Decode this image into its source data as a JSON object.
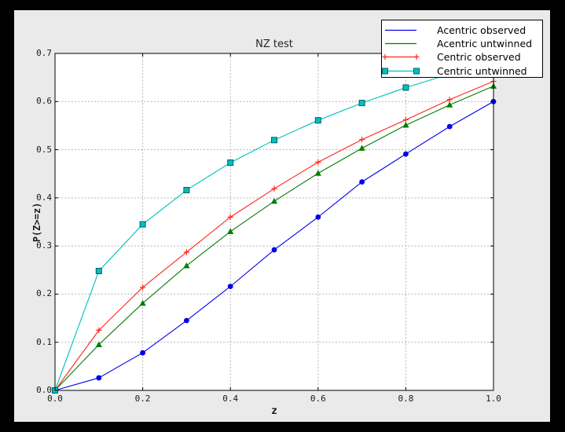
{
  "window": {
    "frame_color": "#000000",
    "figure_bg": "#EAEAEA",
    "plot_bg": "#FFFFFF",
    "grid_color": "#B3B3B3",
    "spine_color": "#000000",
    "text_color": "#1a1a1a"
  },
  "chart_data": {
    "type": "line",
    "title": "NZ test",
    "xlabel": "z",
    "ylabel": "P(Z>=z)",
    "xlim": [
      0.0,
      1.0
    ],
    "ylim": [
      0.0,
      0.7
    ],
    "xticks": [
      0.0,
      0.2,
      0.4,
      0.6,
      0.8,
      1.0
    ],
    "xtick_labels": [
      "0.0",
      "0.2",
      "0.4",
      "0.6",
      "0.8",
      "1.0"
    ],
    "yticks": [
      0.0,
      0.1,
      0.2,
      0.3,
      0.4,
      0.5,
      0.6,
      0.7
    ],
    "ytick_labels": [
      "0.0",
      "0.1",
      "0.2",
      "0.3",
      "0.4",
      "0.5",
      "0.6",
      "0.7"
    ],
    "grid": true,
    "grid_style": "dashed",
    "legend_position": "upper right",
    "x": [
      0.0,
      0.1,
      0.2,
      0.3,
      0.4,
      0.5,
      0.6,
      0.7,
      0.8,
      0.9,
      1.0
    ],
    "series": [
      {
        "name": "Acentric observed",
        "color": "#0000EE",
        "marker": "circle",
        "legend_marker": "none",
        "values": [
          0.0,
          0.026,
          0.078,
          0.145,
          0.216,
          0.292,
          0.36,
          0.433,
          0.491,
          0.548,
          0.6
        ]
      },
      {
        "name": "Acentric untwinned",
        "color": "#007D00",
        "marker": "triangle",
        "legend_marker": "none",
        "values": [
          0.0,
          0.095,
          0.181,
          0.259,
          0.33,
          0.393,
          0.451,
          0.503,
          0.551,
          0.593,
          0.632
        ]
      },
      {
        "name": "Centric observed",
        "color": "#FF2619",
        "marker": "plus",
        "legend_marker": "plus",
        "values": [
          0.0,
          0.125,
          0.214,
          0.287,
          0.36,
          0.419,
          0.474,
          0.521,
          0.562,
          0.604,
          0.642
        ]
      },
      {
        "name": "Centric untwinned",
        "color": "#00BFBF",
        "marker": "square",
        "marker_edge": "#006060",
        "legend_marker": "square",
        "values": [
          0.0,
          0.248,
          0.345,
          0.416,
          0.473,
          0.52,
          0.561,
          0.597,
          0.629,
          0.657,
          0.683
        ]
      }
    ]
  }
}
